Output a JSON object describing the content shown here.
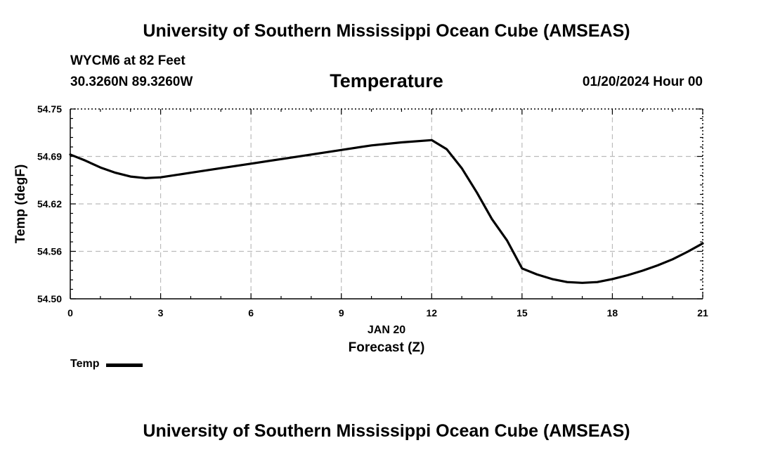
{
  "header": {
    "org_title": "University of Southern Mississippi Ocean Cube (AMSEAS)",
    "station": "WYCM6 at 82 Feet",
    "coords": "30.3260N  89.3260W",
    "variable": "Temperature",
    "datetime": "01/20/2024 Hour 00"
  },
  "footer": {
    "org_title": "University of Southern Mississippi Ocean Cube (AMSEAS)"
  },
  "legend": {
    "label": "Temp"
  },
  "colors": {
    "line": "#000000",
    "grid": "#bbbbbb"
  },
  "chart_data": {
    "type": "line",
    "title": "Temperature",
    "xlabel": "Forecast (Z)",
    "xlabel_date": "JAN 20",
    "ylabel": "Temp (degF)",
    "xlim": [
      0,
      21
    ],
    "ylim": [
      54.5,
      54.75
    ],
    "xticks": [
      0,
      3,
      6,
      9,
      12,
      15,
      18,
      21
    ],
    "xtick_labels": [
      "0",
      "3",
      "6",
      "9",
      "12",
      "15",
      "18",
      "21"
    ],
    "yticks": [
      54.5,
      54.5625,
      54.625,
      54.6875,
      54.75
    ],
    "ytick_labels": [
      "54.50",
      "54.56",
      "54.62",
      "54.69",
      "54.75"
    ],
    "grid": true,
    "series": [
      {
        "name": "Temp",
        "x": [
          0,
          0.5,
          1,
          1.5,
          2,
          2.5,
          3,
          4,
          5,
          6,
          7,
          8,
          9,
          10,
          11,
          12,
          12.5,
          13,
          13.5,
          14,
          14.5,
          15,
          15.5,
          16,
          16.5,
          17,
          17.5,
          18,
          18.5,
          19,
          19.5,
          20,
          20.5,
          21
        ],
        "values": [
          54.69,
          54.682,
          54.673,
          54.666,
          54.661,
          54.659,
          54.66,
          54.666,
          54.672,
          54.678,
          54.684,
          54.69,
          54.696,
          54.702,
          54.706,
          54.709,
          54.697,
          54.672,
          54.64,
          54.605,
          54.577,
          54.54,
          54.532,
          54.526,
          54.522,
          54.521,
          54.522,
          54.526,
          54.531,
          54.537,
          54.544,
          54.552,
          54.562,
          54.573
        ]
      }
    ]
  }
}
